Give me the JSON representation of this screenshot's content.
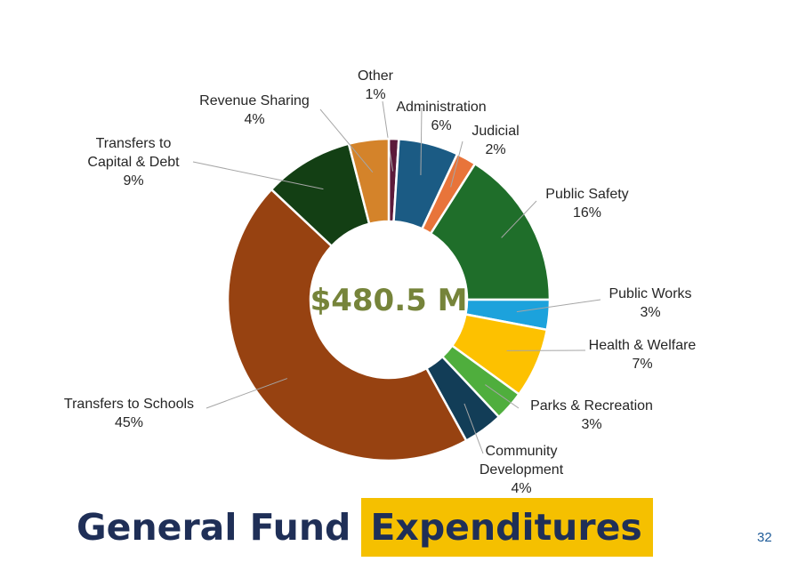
{
  "slide": {
    "title_part1": "General Fund",
    "title_part2": "Expenditures",
    "title_color": "#1f2f57",
    "title_highlight_color": "#f5c000",
    "page_number": "32"
  },
  "chart_data": {
    "type": "pie",
    "variant": "donut",
    "center_label": "$480.5 M",
    "center_label_color": "#76843a",
    "start": "top, clockwise",
    "categories": [
      "Other",
      "Administration",
      "Judicial",
      "Public Safety",
      "Public Works",
      "Health & Welfare",
      "Parks & Recreation",
      "Community Development",
      "Transfers to Schools",
      "Transfers to Capital & Debt",
      "Revenue Sharing"
    ],
    "values": [
      1,
      6,
      2,
      16,
      3,
      7,
      3,
      4,
      45,
      9,
      4
    ],
    "unit": "%",
    "labels": [
      {
        "name": [
          "Other"
        ],
        "pct": "1%"
      },
      {
        "name": [
          "Administration"
        ],
        "pct": "6%"
      },
      {
        "name": [
          "Judicial"
        ],
        "pct": "2%"
      },
      {
        "name": [
          "Public Safety"
        ],
        "pct": "16%"
      },
      {
        "name": [
          "Public Works"
        ],
        "pct": "3%"
      },
      {
        "name": [
          "Health & Welfare"
        ],
        "pct": "7%"
      },
      {
        "name": [
          "Parks & Recreation"
        ],
        "pct": "3%"
      },
      {
        "name": [
          "Community",
          "Development"
        ],
        "pct": "4%"
      },
      {
        "name": [
          "Transfers to Schools"
        ],
        "pct": "45%"
      },
      {
        "name": [
          "Transfers to",
          "Capital & Debt"
        ],
        "pct": "9%"
      },
      {
        "name": [
          "Revenue Sharing"
        ],
        "pct": "4%"
      }
    ],
    "colors": [
      "#5c1a3a",
      "#1b5b84",
      "#e8743a",
      "#1f6e2a",
      "#1ca2dc",
      "#fdc100",
      "#4fae3d",
      "#123d57",
      "#974211",
      "#133f14",
      "#d4832a"
    ],
    "legend": "none (data labels with leader lines)"
  }
}
